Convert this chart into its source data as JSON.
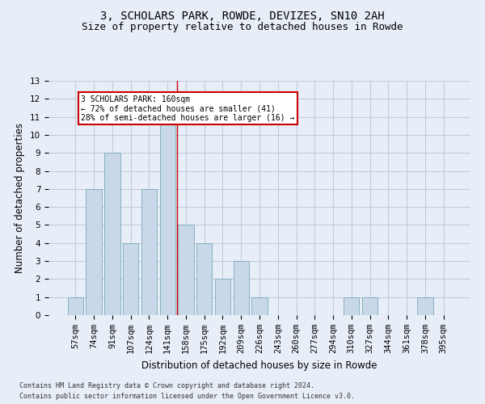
{
  "title": "3, SCHOLARS PARK, ROWDE, DEVIZES, SN10 2AH",
  "subtitle": "Size of property relative to detached houses in Rowde",
  "xlabel": "Distribution of detached houses by size in Rowde",
  "ylabel": "Number of detached properties",
  "categories": [
    "57sqm",
    "74sqm",
    "91sqm",
    "107sqm",
    "124sqm",
    "141sqm",
    "158sqm",
    "175sqm",
    "192sqm",
    "209sqm",
    "226sqm",
    "243sqm",
    "260sqm",
    "277sqm",
    "294sqm",
    "310sqm",
    "327sqm",
    "344sqm",
    "361sqm",
    "378sqm",
    "395sqm"
  ],
  "values": [
    1,
    7,
    9,
    4,
    7,
    11,
    5,
    4,
    2,
    3,
    1,
    0,
    0,
    0,
    0,
    1,
    1,
    0,
    0,
    1,
    0
  ],
  "bar_color": "#c8d8e8",
  "bar_edge_color": "#7aaabb",
  "grid_color": "#c0ccdd",
  "bg_color": "#e8eef8",
  "red_line_x": 5.5,
  "annotation_text": "3 SCHOLARS PARK: 160sqm\n← 72% of detached houses are smaller (41)\n28% of semi-detached houses are larger (16) →",
  "annotation_box_color": "#ffffff",
  "annotation_box_edge": "#cc0000",
  "red_line_color": "#cc0000",
  "footer_line1": "Contains HM Land Registry data © Crown copyright and database right 2024.",
  "footer_line2": "Contains public sector information licensed under the Open Government Licence v3.0.",
  "ylim": [
    0,
    13
  ],
  "title_fontsize": 10,
  "subtitle_fontsize": 9,
  "axis_label_fontsize": 8.5,
  "tick_fontsize": 7.5,
  "footer_fontsize": 6.0
}
